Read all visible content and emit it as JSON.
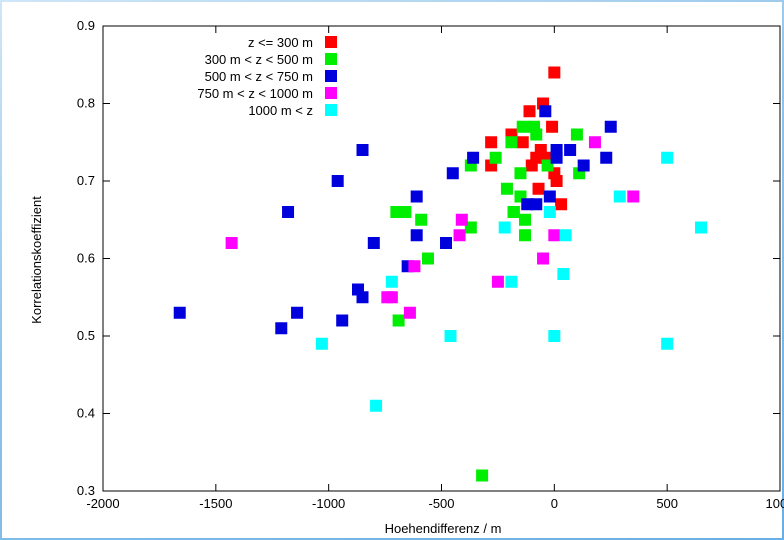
{
  "chart_data": {
    "type": "scatter",
    "xlabel": "Hoehendifferenz / m",
    "ylabel": "Korrelationskoeffizient",
    "xlim": [
      -2000,
      1000
    ],
    "ylim": [
      0.3,
      0.9
    ],
    "x_ticks": [
      "-2000",
      "-1500",
      "-1000",
      "-500",
      "0",
      "500",
      "1000"
    ],
    "y_ticks": [
      "0.3",
      "0.4",
      "0.5",
      "0.6",
      "0.7",
      "0.8",
      "0.9"
    ],
    "legend_position": "top-right",
    "grid": false,
    "series": [
      {
        "name": "z <= 300 m",
        "color": "#ff0000",
        "points": [
          [
            0,
            0.84
          ],
          [
            -50,
            0.8
          ],
          [
            -110,
            0.79
          ],
          [
            -10,
            0.77
          ],
          [
            -190,
            0.76
          ],
          [
            -280,
            0.75
          ],
          [
            -140,
            0.75
          ],
          [
            -60,
            0.74
          ],
          [
            -80,
            0.73
          ],
          [
            -40,
            0.73
          ],
          [
            -100,
            0.72
          ],
          [
            -280,
            0.72
          ],
          [
            0,
            0.71
          ],
          [
            10,
            0.7
          ],
          [
            -70,
            0.69
          ],
          [
            -180,
            0.66
          ],
          [
            30,
            0.67
          ]
        ]
      },
      {
        "name": "300 m < z < 500 m",
        "color": "#00ee00",
        "points": [
          [
            -140,
            0.77
          ],
          [
            -90,
            0.77
          ],
          [
            -190,
            0.75
          ],
          [
            -80,
            0.76
          ],
          [
            100,
            0.76
          ],
          [
            -260,
            0.73
          ],
          [
            -30,
            0.72
          ],
          [
            -150,
            0.71
          ],
          [
            110,
            0.71
          ],
          [
            -370,
            0.72
          ],
          [
            -210,
            0.69
          ],
          [
            -150,
            0.68
          ],
          [
            -180,
            0.66
          ],
          [
            -130,
            0.65
          ],
          [
            -700,
            0.66
          ],
          [
            -660,
            0.66
          ],
          [
            -590,
            0.65
          ],
          [
            -370,
            0.64
          ],
          [
            -130,
            0.63
          ],
          [
            -560,
            0.6
          ],
          [
            -690,
            0.52
          ],
          [
            -320,
            0.32
          ]
        ]
      },
      {
        "name": "500 m < z < 750 m",
        "color": "#0000dd",
        "points": [
          [
            -40,
            0.79
          ],
          [
            250,
            0.77
          ],
          [
            -850,
            0.74
          ],
          [
            10,
            0.74
          ],
          [
            70,
            0.74
          ],
          [
            -360,
            0.73
          ],
          [
            230,
            0.73
          ],
          [
            130,
            0.72
          ],
          [
            -450,
            0.71
          ],
          [
            -960,
            0.7
          ],
          [
            -610,
            0.68
          ],
          [
            -20,
            0.68
          ],
          [
            -80,
            0.67
          ],
          [
            -1180,
            0.66
          ],
          [
            -610,
            0.63
          ],
          [
            -800,
            0.62
          ],
          [
            -480,
            0.62
          ],
          [
            -650,
            0.59
          ],
          [
            -870,
            0.56
          ],
          [
            -850,
            0.55
          ],
          [
            -1660,
            0.53
          ],
          [
            -1140,
            0.53
          ],
          [
            -940,
            0.52
          ],
          [
            -1210,
            0.51
          ],
          [
            -120,
            0.67
          ],
          [
            10,
            0.73
          ]
        ]
      },
      {
        "name": "750 m < z < 1000 m",
        "color": "#ff00ff",
        "points": [
          [
            180,
            0.75
          ],
          [
            350,
            0.68
          ],
          [
            -1430,
            0.62
          ],
          [
            -410,
            0.65
          ],
          [
            -420,
            0.63
          ],
          [
            0,
            0.63
          ],
          [
            -740,
            0.55
          ],
          [
            -720,
            0.55
          ],
          [
            -640,
            0.53
          ],
          [
            -250,
            0.57
          ],
          [
            -50,
            0.6
          ],
          [
            -620,
            0.59
          ]
        ]
      },
      {
        "name": "1000 m < z",
        "color": "#00ffff",
        "points": [
          [
            500,
            0.73
          ],
          [
            290,
            0.68
          ],
          [
            650,
            0.64
          ],
          [
            -220,
            0.64
          ],
          [
            50,
            0.63
          ],
          [
            -20,
            0.66
          ],
          [
            -720,
            0.57
          ],
          [
            -190,
            0.57
          ],
          [
            40,
            0.58
          ],
          [
            -1030,
            0.49
          ],
          [
            -460,
            0.5
          ],
          [
            0,
            0.5
          ],
          [
            500,
            0.49
          ],
          [
            -790,
            0.41
          ]
        ]
      }
    ]
  }
}
